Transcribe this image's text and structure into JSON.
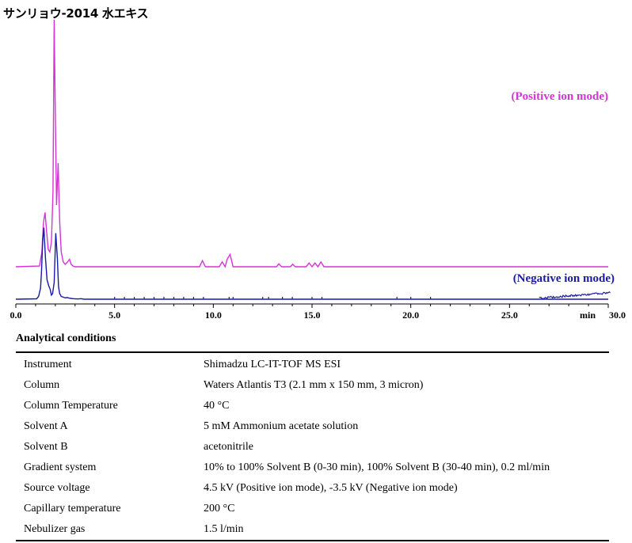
{
  "title": "サンリョウ-2014 水エキス",
  "chart_data": {
    "type": "line",
    "xlabel": "min",
    "xlim": [
      0,
      30
    ],
    "xticks": [
      "0.0",
      "5.0",
      "10.0",
      "15.0",
      "20.0",
      "25.0",
      "30.0"
    ],
    "series": [
      {
        "name": "(Positive ion mode)",
        "color": "#d633d6",
        "x": [
          0,
          1.2,
          1.32,
          1.4,
          1.48,
          1.56,
          1.64,
          1.72,
          1.8,
          1.88,
          1.94,
          2.0,
          2.06,
          2.14,
          2.22,
          2.3,
          2.4,
          2.5,
          2.62,
          2.72,
          2.8,
          2.9,
          3.0,
          9.3,
          9.45,
          9.6,
          10.3,
          10.45,
          10.6,
          10.7,
          10.85,
          11.0,
          13.2,
          13.32,
          13.45,
          13.9,
          14.02,
          14.15,
          14.7,
          14.85,
          15.0,
          15.15,
          15.3,
          15.45,
          15.6,
          30
        ],
        "values": [
          0,
          0.3,
          6,
          18,
          22,
          14,
          7,
          6,
          10,
          30,
          100,
          60,
          25,
          42,
          18,
          6,
          2,
          1,
          2,
          3,
          1,
          0.3,
          0,
          0,
          2.5,
          0,
          0,
          2,
          0,
          3,
          5,
          0,
          0,
          1.2,
          0,
          0,
          1,
          0,
          0,
          1.5,
          0,
          1.5,
          0,
          2,
          0,
          0
        ]
      },
      {
        "name": "(Negative ion mode)",
        "color": "#1a1aa8",
        "x": [
          0,
          1.05,
          1.15,
          1.25,
          1.3,
          1.36,
          1.42,
          1.5,
          1.58,
          1.66,
          1.74,
          1.8,
          1.86,
          1.94,
          2.02,
          2.1,
          2.16,
          2.22,
          2.3,
          2.4,
          2.5,
          2.6,
          2.7,
          2.8,
          2.9,
          3.0,
          3.15,
          3.3,
          3.45,
          30
        ],
        "values": [
          0,
          0.3,
          2,
          8,
          20,
          42,
          52,
          30,
          14,
          10,
          7,
          3,
          4,
          12,
          48,
          30,
          9,
          4,
          2,
          1.5,
          1,
          1.2,
          0.8,
          0.6,
          0.4,
          0.3,
          0.2,
          0.4,
          0,
          0
        ]
      }
    ]
  },
  "conditions": {
    "heading": "Analytical conditions",
    "rows": [
      {
        "label": "Instrument",
        "value": "Shimadzu LC-IT-TOF MS ESI"
      },
      {
        "label": "Column",
        "value": "Waters Atlantis T3 (2.1 mm x 150 mm, 3 micron)"
      },
      {
        "label": "Column Temperature",
        "value": "40 °C"
      },
      {
        "label": "Solvent A",
        "value": "5 mM Ammonium acetate solution"
      },
      {
        "label": "Solvent B",
        "value": "acetonitrile"
      },
      {
        "label": "Gradient system",
        "value": "10% to 100% Solvent B (0-30 min), 100% Solvent B (30-40 min), 0.2 ml/min"
      },
      {
        "label": "Source voltage",
        "value": "4.5 kV (Positive ion mode), -3.5 kV (Negative ion mode)"
      },
      {
        "label": "Capillary temperature",
        "value": "200 °C"
      },
      {
        "label": "Nebulizer gas",
        "value": "1.5 l/min"
      }
    ]
  }
}
